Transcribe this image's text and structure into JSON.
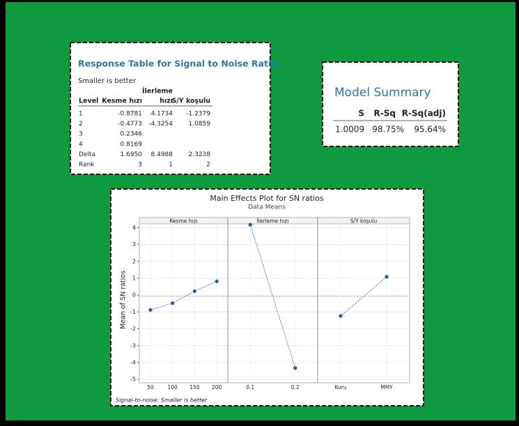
{
  "response_table": {
    "title": "Response Table for Signal to Noise Ratios",
    "subtitle": "Smaller is better",
    "header_top": "İlerleme",
    "columns": [
      "Level",
      "Kesme hızı",
      "hızı",
      "S/Y koşulu"
    ],
    "rows": [
      [
        "1",
        "-0.8781",
        "4.1734",
        "-1.2379"
      ],
      [
        "2",
        "-0.4773",
        "-4.3254",
        "1.0859"
      ],
      [
        "3",
        "0.2346"
      ],
      [
        "4",
        "0.8169"
      ],
      [
        "Delta",
        "1.6950",
        "8.4988",
        "2.3238"
      ],
      [
        "Rank",
        "3",
        "1",
        "2"
      ]
    ]
  },
  "model_summary": {
    "title": "Model Summary",
    "columns": [
      "S",
      "R-Sq",
      "R-Sq(adj)"
    ],
    "values": [
      "1.0009",
      "98.75%",
      "95.64%"
    ]
  },
  "chart_data": {
    "type": "line",
    "title": "Main Effects Plot for SN ratios",
    "subtitle": "Data Means",
    "ylabel": "Mean of SN ratios",
    "footnote": "Signal-to-noise: Smaller is better",
    "ylim": [
      -5.2,
      4.6
    ],
    "yticks": [
      -5,
      -4,
      -3,
      -2,
      -1,
      0,
      1,
      2,
      3,
      4
    ],
    "reference_line": -0.076,
    "grid": true,
    "color": "#1f5aa6",
    "panels": [
      {
        "name": "Kesme hızı",
        "categories": [
          "50",
          "100",
          "150",
          "200"
        ],
        "values": [
          -0.8781,
          -0.4773,
          0.2346,
          0.8169
        ]
      },
      {
        "name": "İlerleme hızı",
        "categories": [
          "0.1",
          "0.2"
        ],
        "values": [
          4.1734,
          -4.3254
        ]
      },
      {
        "name": "S/Y koşulu",
        "categories": [
          "Kuru",
          "MMY"
        ],
        "values": [
          -1.2379,
          1.0859
        ]
      }
    ]
  }
}
